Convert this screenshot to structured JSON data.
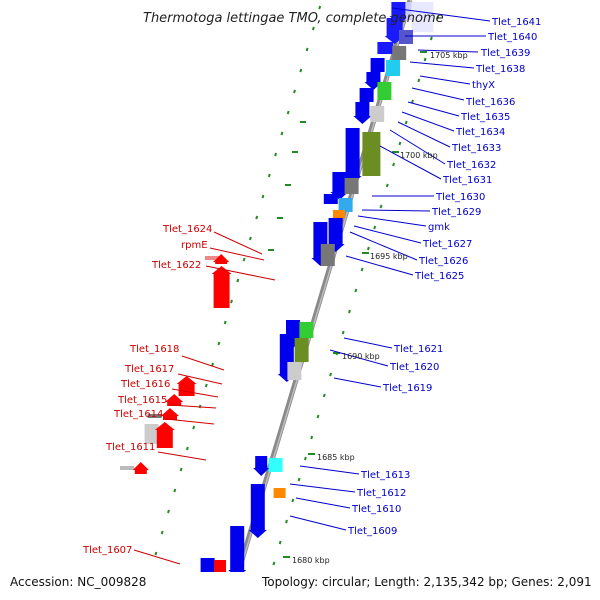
{
  "title": "Thermotoga lettingae TMO, complete genome",
  "footer": {
    "accession": "Accession: NC_009828",
    "summary": "Topology: circular; Length: 2,135,342 bp; Genes: 2,091"
  },
  "colors": {
    "forward_label": "#0000cc",
    "reverse_label": "#cc0000",
    "backbone": "#888888",
    "tick": "#228b22"
  },
  "scale_labels": [
    "1705 kbp",
    "1700 kbp",
    "1695 kbp",
    "1690 kbp",
    "1685 kbp",
    "1680 kbp"
  ],
  "forward_genes": [
    "Tlet_1641",
    "Tlet_1640",
    "Tlet_1639",
    "Tlet_1638",
    "thyX",
    "Tlet_1636",
    "Tlet_1635",
    "Tlet_1634",
    "Tlet_1633",
    "Tlet_1632",
    "Tlet_1631",
    "Tlet_1630",
    "Tlet_1629",
    "gmk",
    "Tlet_1627",
    "Tlet_1626",
    "Tlet_1625",
    "Tlet_1621",
    "Tlet_1620",
    "Tlet_1619",
    "Tlet_1613",
    "Tlet_1612",
    "Tlet_1610",
    "Tlet_1609"
  ],
  "reverse_genes": [
    "Tlet_1624",
    "rpmE",
    "Tlet_1622",
    "Tlet_1618",
    "Tlet_1617",
    "Tlet_1616",
    "Tlet_1615",
    "Tlet_1614",
    "Tlet_1611",
    "Tlet_1607"
  ]
}
